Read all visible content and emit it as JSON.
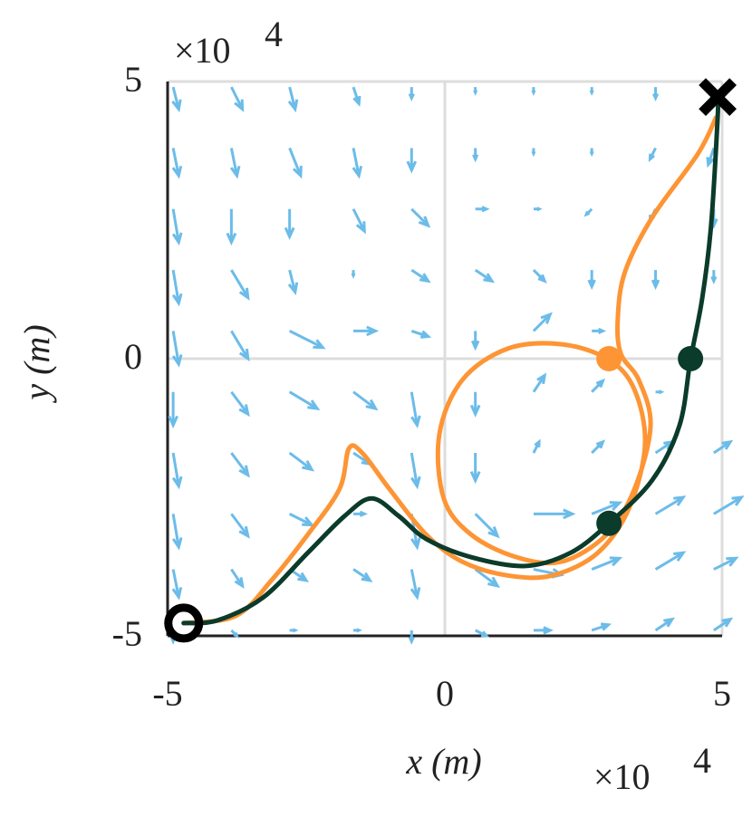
{
  "chart_data": {
    "type": "line",
    "xlabel": "x (m)",
    "ylabel": "y (m)",
    "x_offset": {
      "base": "×10",
      "exponent": "4"
    },
    "y_offset": {
      "base": "×10",
      "exponent": "4"
    },
    "xlim": [
      -5,
      5
    ],
    "ylim": [
      -5,
      5
    ],
    "xticks": [
      -5,
      0,
      5
    ],
    "yticks": [
      -5,
      0,
      5
    ],
    "grid": true,
    "series": [
      {
        "color": "#fd9535",
        "x": [
          -4.71,
          -3.77,
          -3.12,
          -2.47,
          -1.9,
          -1.73,
          -1.49,
          -1.0,
          -0.34,
          0.31,
          1.13,
          1.94,
          2.76,
          3.33,
          3.61,
          3.42,
          2.96,
          2.11,
          1.13,
          0.31,
          -0.1,
          -0.02,
          0.47,
          1.29,
          2.11,
          2.92,
          3.42,
          3.71,
          3.5,
          3.17,
          3.12,
          3.25,
          3.74,
          4.56,
          4.89
        ],
        "y": [
          -4.77,
          -4.64,
          -3.99,
          -3.17,
          -2.35,
          -1.62,
          -1.7,
          -2.35,
          -3.17,
          -3.66,
          -3.91,
          -3.91,
          -3.5,
          -2.68,
          -1.54,
          -0.56,
          -0.02,
          0.26,
          0.18,
          -0.39,
          -1.37,
          -2.52,
          -3.17,
          -3.58,
          -3.66,
          -3.17,
          -2.35,
          -1.21,
          -0.39,
          0.1,
          0.75,
          1.57,
          2.55,
          3.69,
          4.35
        ]
      },
      {
        "color": "#0b3b2a",
        "x": [
          -4.71,
          -4.1,
          -3.28,
          -2.47,
          -1.81,
          -1.32,
          -0.83,
          -0.34,
          0.47,
          1.45,
          2.27,
          2.96,
          3.74,
          4.23,
          4.43,
          4.64,
          4.8,
          4.92,
          4.92
        ],
        "y": [
          -4.77,
          -4.72,
          -4.31,
          -3.5,
          -2.84,
          -2.52,
          -2.84,
          -3.25,
          -3.58,
          -3.74,
          -3.5,
          -2.97,
          -2.19,
          -1.21,
          -0.02,
          1.08,
          2.39,
          4.35,
          4.72
        ]
      }
    ],
    "markers": [
      {
        "x": -4.71,
        "y": -4.77,
        "shape": "circle-open",
        "color": "#000000"
      },
      {
        "x": 4.92,
        "y": 4.72,
        "shape": "cross",
        "color": "#000000"
      },
      {
        "x": 2.96,
        "y": 0,
        "shape": "dot",
        "color": "#fd9535"
      },
      {
        "x": 4.43,
        "y": 0,
        "shape": "dot",
        "color": "#0b3b2a"
      },
      {
        "x": 2.96,
        "y": -2.97,
        "shape": "dot",
        "color": "#0b3b2a"
      }
    ],
    "quiver": {
      "color": "#6cbce9",
      "x": [
        -4.9,
        -3.85,
        -2.8,
        -1.65,
        -0.6,
        0.55,
        1.6,
        2.65,
        3.8,
        4.85
      ],
      "y": [
        4.9,
        3.8,
        2.7,
        1.6,
        0.5,
        -0.6,
        -1.7,
        -2.8,
        -3.8,
        -4.9
      ],
      "u": [
        [
          0.1,
          0.2,
          0.1,
          0.1,
          0,
          0,
          0,
          0,
          0,
          0
        ],
        [
          0.1,
          0.1,
          0.2,
          0.1,
          0,
          0,
          0,
          0,
          -0.1,
          -0.1
        ],
        [
          0.1,
          0,
          0,
          0.2,
          0.3,
          0.2,
          0.1,
          -0.1,
          -0.1,
          0
        ],
        [
          0.1,
          0.3,
          0.1,
          0,
          0.3,
          0.3,
          0.2,
          0,
          0,
          0
        ],
        [
          0.1,
          0.3,
          0.6,
          0.4,
          0.3,
          0,
          0.3,
          0.2,
          0,
          0
        ],
        [
          0,
          0.3,
          0.5,
          0.4,
          0.1,
          0,
          0.2,
          0.2,
          0.1,
          0
        ],
        [
          0.1,
          0.3,
          0.4,
          0.3,
          0.1,
          0,
          0.1,
          0.2,
          0.3,
          0.3
        ],
        [
          0.1,
          0.3,
          0.4,
          0.2,
          0.1,
          0.4,
          0.7,
          0.5,
          0.5,
          0.5
        ],
        [
          0.1,
          0.2,
          0.3,
          0.3,
          0.1,
          0.4,
          0.5,
          0.5,
          0.5,
          0.4
        ],
        [
          0,
          0.1,
          0.1,
          0.1,
          0,
          0.2,
          0.3,
          0.3,
          0.3,
          0.3
        ]
      ],
      "v": [
        [
          -0.4,
          -0.4,
          -0.4,
          -0.3,
          -0.2,
          -0.1,
          -0.1,
          -0.1,
          -0.2,
          -0.3
        ],
        [
          -0.5,
          -0.5,
          -0.5,
          -0.5,
          -0.4,
          -0.2,
          -0.1,
          -0.1,
          -0.2,
          -0.3
        ],
        [
          -0.6,
          -0.6,
          -0.5,
          -0.4,
          -0.3,
          0,
          0,
          -0.1,
          -0.2,
          -0.3
        ],
        [
          -0.6,
          -0.5,
          -0.4,
          -0.1,
          -0.2,
          -0.2,
          -0.2,
          -0.3,
          -0.3,
          -0.2
        ],
        [
          -0.6,
          -0.5,
          -0.3,
          0,
          -0.1,
          -0.3,
          0.3,
          0,
          0,
          0
        ],
        [
          -0.6,
          -0.4,
          -0.3,
          -0.3,
          -0.6,
          -0.4,
          0.3,
          0.2,
          0,
          0
        ],
        [
          -0.6,
          -0.4,
          -0.3,
          -0.2,
          -0.6,
          -0.5,
          0.2,
          0.2,
          0.2,
          0.2
        ],
        [
          -0.6,
          -0.4,
          -0.2,
          0,
          -0.6,
          -0.4,
          0,
          0.2,
          0.3,
          0.3
        ],
        [
          -0.5,
          -0.3,
          -0.2,
          -0.2,
          -0.5,
          -0.3,
          -0.1,
          0.2,
          0.3,
          0.2
        ],
        [
          -0.2,
          -0.1,
          0,
          0,
          -0.2,
          -0.1,
          0,
          0.1,
          0.2,
          0.2
        ]
      ]
    }
  }
}
